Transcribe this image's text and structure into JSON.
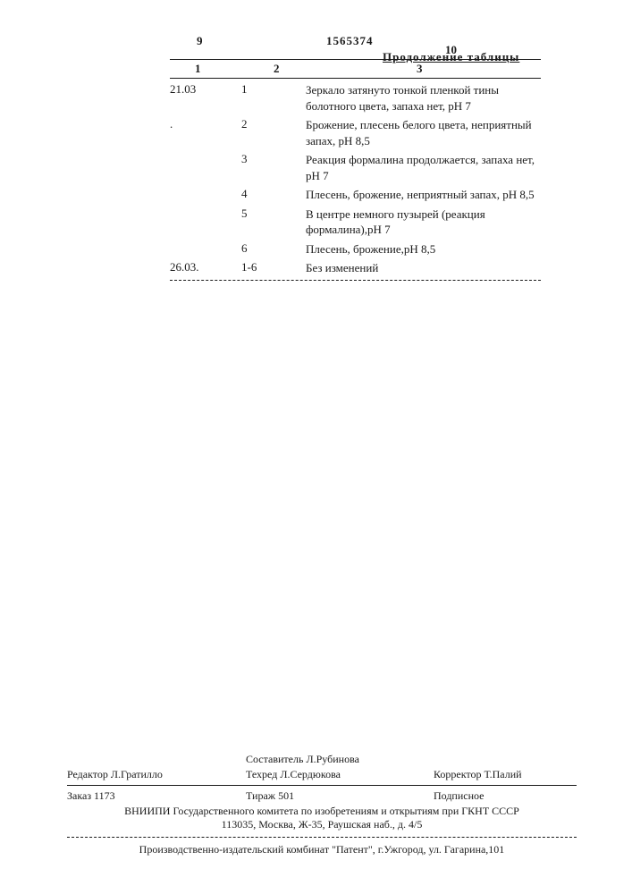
{
  "header": {
    "page_left": "9",
    "doc_number": "1565374",
    "page_right": "10",
    "continuation_label": "Продолжение таблицы"
  },
  "table": {
    "columns": {
      "c1": "1",
      "c2": "2",
      "c3": "3"
    },
    "rows": [
      {
        "c1": "21.03",
        "c2": "1",
        "c3": "Зеркало затянуто тонкой пленкой тины болотного цвета, запаха нет, рН 7"
      },
      {
        "c1": ".",
        "c2": "2",
        "c3": "Брожение, плесень белого цвета, неприятный запах, рН 8,5"
      },
      {
        "c1": "",
        "c2": "3",
        "c3": "Реакция формалина продолжается, запаха нет,  рН 7"
      },
      {
        "c1": "",
        "c2": "4",
        "c3": "Плесень, брожение, неприятный запах, рН 8,5"
      },
      {
        "c1": "",
        "c2": "5",
        "c3": "В центре немного пузырей (реакция формалина),рН 7"
      },
      {
        "c1": "",
        "c2": "6",
        "c3": "Плесень, брожение,рН 8,5"
      },
      {
        "c1": "26.03.",
        "c2": "1-6",
        "c3": "Без изменений"
      }
    ]
  },
  "footer": {
    "compiler": "Составитель Л.Рубинова",
    "editor": "Редактор Л.Гратилло",
    "tech": "Техред Л.Сердюкова",
    "corrector": "Корректор Т.Палий",
    "order": "Заказ 1173",
    "print_run": "Тираж 501",
    "subscription": "Подписное",
    "org": "ВНИИПИ Государственного комитета по изобретениям и открытиям при ГКНТ СССР",
    "addr1": "113035, Москва, Ж-35, Раушская наб., д. 4/5",
    "addr2": "Производственно-издательский комбинат \"Патент\", г.Ужгород, ул. Гагарина,101"
  }
}
